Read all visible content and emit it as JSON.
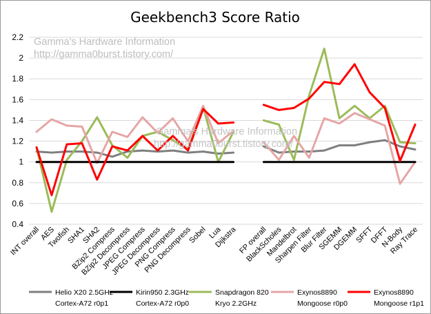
{
  "chart_data": {
    "type": "line",
    "title": "Geekbench3 Score Ratio",
    "watermark": {
      "line1": "Gamma's Hardware Information",
      "line2": "http://gamma0burst.tistory.com/"
    },
    "categories": [
      "INT overall",
      "AES",
      "Twofish",
      "SHA1",
      "SHA2",
      "BZip2 Compress",
      "BZip2 Decompress",
      "JPEG Compress",
      "JPEG Decompress",
      "PNG Compress",
      "PNG Decompress",
      "Sobel",
      "Lua",
      "Dijkstra",
      "",
      "FP overall",
      "BlackScholes",
      "Mandelbrot",
      "Sharpen Filter",
      "Blur Filter",
      "SGEMM",
      "DGEMM",
      "SFFT",
      "DFFT",
      "N-Body",
      "Ray Trace"
    ],
    "ylim": [
      0.4,
      2.2
    ],
    "yticks": [
      "0.4",
      "0.6",
      "0.8",
      "1",
      "1.2",
      "1.4",
      "1.6",
      "1.8",
      "2",
      "2.2"
    ],
    "grid": "horizontal",
    "legend_position": "bottom",
    "series": [
      {
        "name_line1": "Helio X20 2.5GHz",
        "name_line2": "Cortex-A72 r0p1",
        "color": "#7f7f7f",
        "values": [
          1.1,
          1.09,
          1.1,
          1.1,
          1.09,
          1.05,
          1.1,
          1.11,
          1.1,
          1.11,
          1.09,
          1.1,
          1.08,
          1.09,
          null,
          1.15,
          1.09,
          1.1,
          1.1,
          1.11,
          1.16,
          1.16,
          1.19,
          1.21,
          1.15,
          1.12
        ]
      },
      {
        "name_line1": "Kirin950 2.3GHz",
        "name_line2": "Cortex-A72 r0p0",
        "color": "#000000",
        "values": [
          1,
          1,
          1,
          1,
          1,
          1,
          1,
          1,
          1,
          1,
          1,
          1,
          1,
          1,
          null,
          1,
          1,
          1,
          1,
          1,
          1,
          1,
          1,
          1,
          1,
          1
        ]
      },
      {
        "name_line1": "Snapdragon 820",
        "name_line2": "Kryo 2.2GHz",
        "color": "#9bbb59",
        "values": [
          1.14,
          0.52,
          1.02,
          1.2,
          1.43,
          1.16,
          1.04,
          1.25,
          1.29,
          1.21,
          1.12,
          1.53,
          1.0,
          1.29,
          null,
          1.4,
          1.36,
          1.02,
          1.64,
          2.09,
          1.42,
          1.54,
          1.42,
          1.54,
          1.19,
          1.18
        ]
      },
      {
        "name_line1": "Exynos8890",
        "name_line2": "Mongoose r0p0",
        "color": "#e6a5a5",
        "values": [
          1.29,
          1.41,
          1.35,
          1.34,
          0.99,
          1.29,
          1.24,
          1.43,
          1.28,
          1.42,
          1.2,
          1.54,
          1.18,
          1.3,
          null,
          1.19,
          1.02,
          1.25,
          1.04,
          1.42,
          1.37,
          1.47,
          1.41,
          1.35,
          0.79,
          1.0
        ]
      },
      {
        "name_line1": "Exynos8890",
        "name_line2": "Mongoose r1p1",
        "color": "#ff0000",
        "values": [
          1.14,
          0.68,
          1.17,
          1.18,
          0.83,
          1.15,
          1.11,
          1.25,
          1.11,
          1.25,
          1.11,
          1.51,
          1.37,
          1.38,
          null,
          1.55,
          1.5,
          1.52,
          1.61,
          1.77,
          1.75,
          1.94,
          1.67,
          1.52,
          1.01,
          1.36
        ]
      }
    ]
  }
}
